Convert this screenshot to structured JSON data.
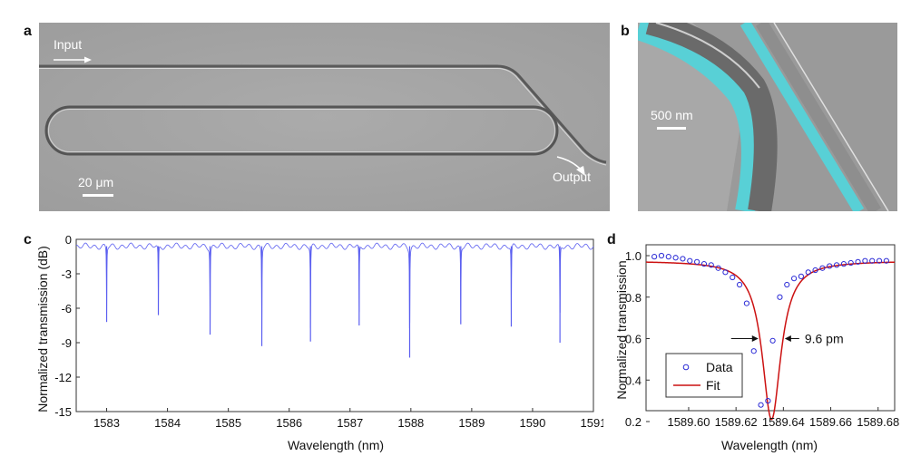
{
  "panels": {
    "a": {
      "letter": "a",
      "input_label": "Input",
      "output_label": "Output",
      "scale_label": "20 μm"
    },
    "b": {
      "letter": "b",
      "scale_label": "500 nm"
    },
    "c": {
      "letter": "c"
    },
    "d": {
      "letter": "d"
    }
  },
  "chart_data": [
    {
      "panel": "c",
      "type": "line",
      "xlabel": "Wavelength (nm)",
      "ylabel": "Normalized transmission (dB)",
      "xlim": [
        1582.5,
        1591.0
      ],
      "ylim": [
        -15,
        0
      ],
      "x_ticks": [
        "1583",
        "1584",
        "1585",
        "1586",
        "1587",
        "1588",
        "1589",
        "1590",
        "1591"
      ],
      "y_ticks": [
        "0",
        "-3",
        "-6",
        "-9",
        "-12",
        "-15"
      ],
      "color": "#5a5ef0",
      "baseline_db": -0.6,
      "resonance_dips": [
        {
          "x": 1583.0,
          "y": -7.2
        },
        {
          "x": 1583.85,
          "y": -6.6
        },
        {
          "x": 1584.7,
          "y": -8.3
        },
        {
          "x": 1585.55,
          "y": -9.3
        },
        {
          "x": 1586.35,
          "y": -8.9
        },
        {
          "x": 1587.15,
          "y": -7.5
        },
        {
          "x": 1587.98,
          "y": -10.3
        },
        {
          "x": 1588.82,
          "y": -7.4
        },
        {
          "x": 1589.65,
          "y": -7.6
        },
        {
          "x": 1590.45,
          "y": -9.0
        }
      ]
    },
    {
      "panel": "d",
      "type": "scatter",
      "xlabel": "Wavelength (nm)",
      "ylabel": "Normalized transmission",
      "xlim": [
        1589.582,
        1589.687
      ],
      "ylim": [
        0.2,
        1.0
      ],
      "x_ticks": [
        "1589.60",
        "1589.62",
        "1589.64",
        "1589.66",
        "1589.68"
      ],
      "y_ticks": [
        "0.2",
        "0.4",
        "0.6",
        "0.8",
        "1.0"
      ],
      "series": [
        {
          "name": "Data",
          "color": "#2b2bd6",
          "x": [
            1589.5855,
            1589.5885,
            1589.5915,
            1589.5945,
            1589.5975,
            1589.6005,
            1589.6035,
            1589.6065,
            1589.6095,
            1589.6125,
            1589.6155,
            1589.6185,
            1589.6215,
            1589.6245,
            1589.6275,
            1589.6305,
            1589.6335,
            1589.6355,
            1589.6385,
            1589.6415,
            1589.6445,
            1589.6475,
            1589.6505,
            1589.6535,
            1589.6565,
            1589.6595,
            1589.6625,
            1589.6655,
            1589.6685,
            1589.6715,
            1589.6745,
            1589.6775,
            1589.6805,
            1589.6835
          ],
          "y": [
            0.995,
            1.0,
            0.995,
            0.99,
            0.985,
            0.975,
            0.97,
            0.96,
            0.955,
            0.94,
            0.92,
            0.895,
            0.86,
            0.77,
            0.54,
            0.28,
            0.3,
            0.59,
            0.8,
            0.86,
            0.89,
            0.9,
            0.92,
            0.93,
            0.94,
            0.95,
            0.955,
            0.96,
            0.965,
            0.97,
            0.975,
            0.975,
            0.975,
            0.975
          ]
        },
        {
          "name": "Fit",
          "color": "#cc1111",
          "lorentzian": {
            "center": 1589.635,
            "fwhm": 0.0096,
            "baseline": 0.975,
            "depth": 0.765
          }
        }
      ],
      "annotation": {
        "label": "9.6 pm",
        "y": 0.6
      }
    }
  ]
}
